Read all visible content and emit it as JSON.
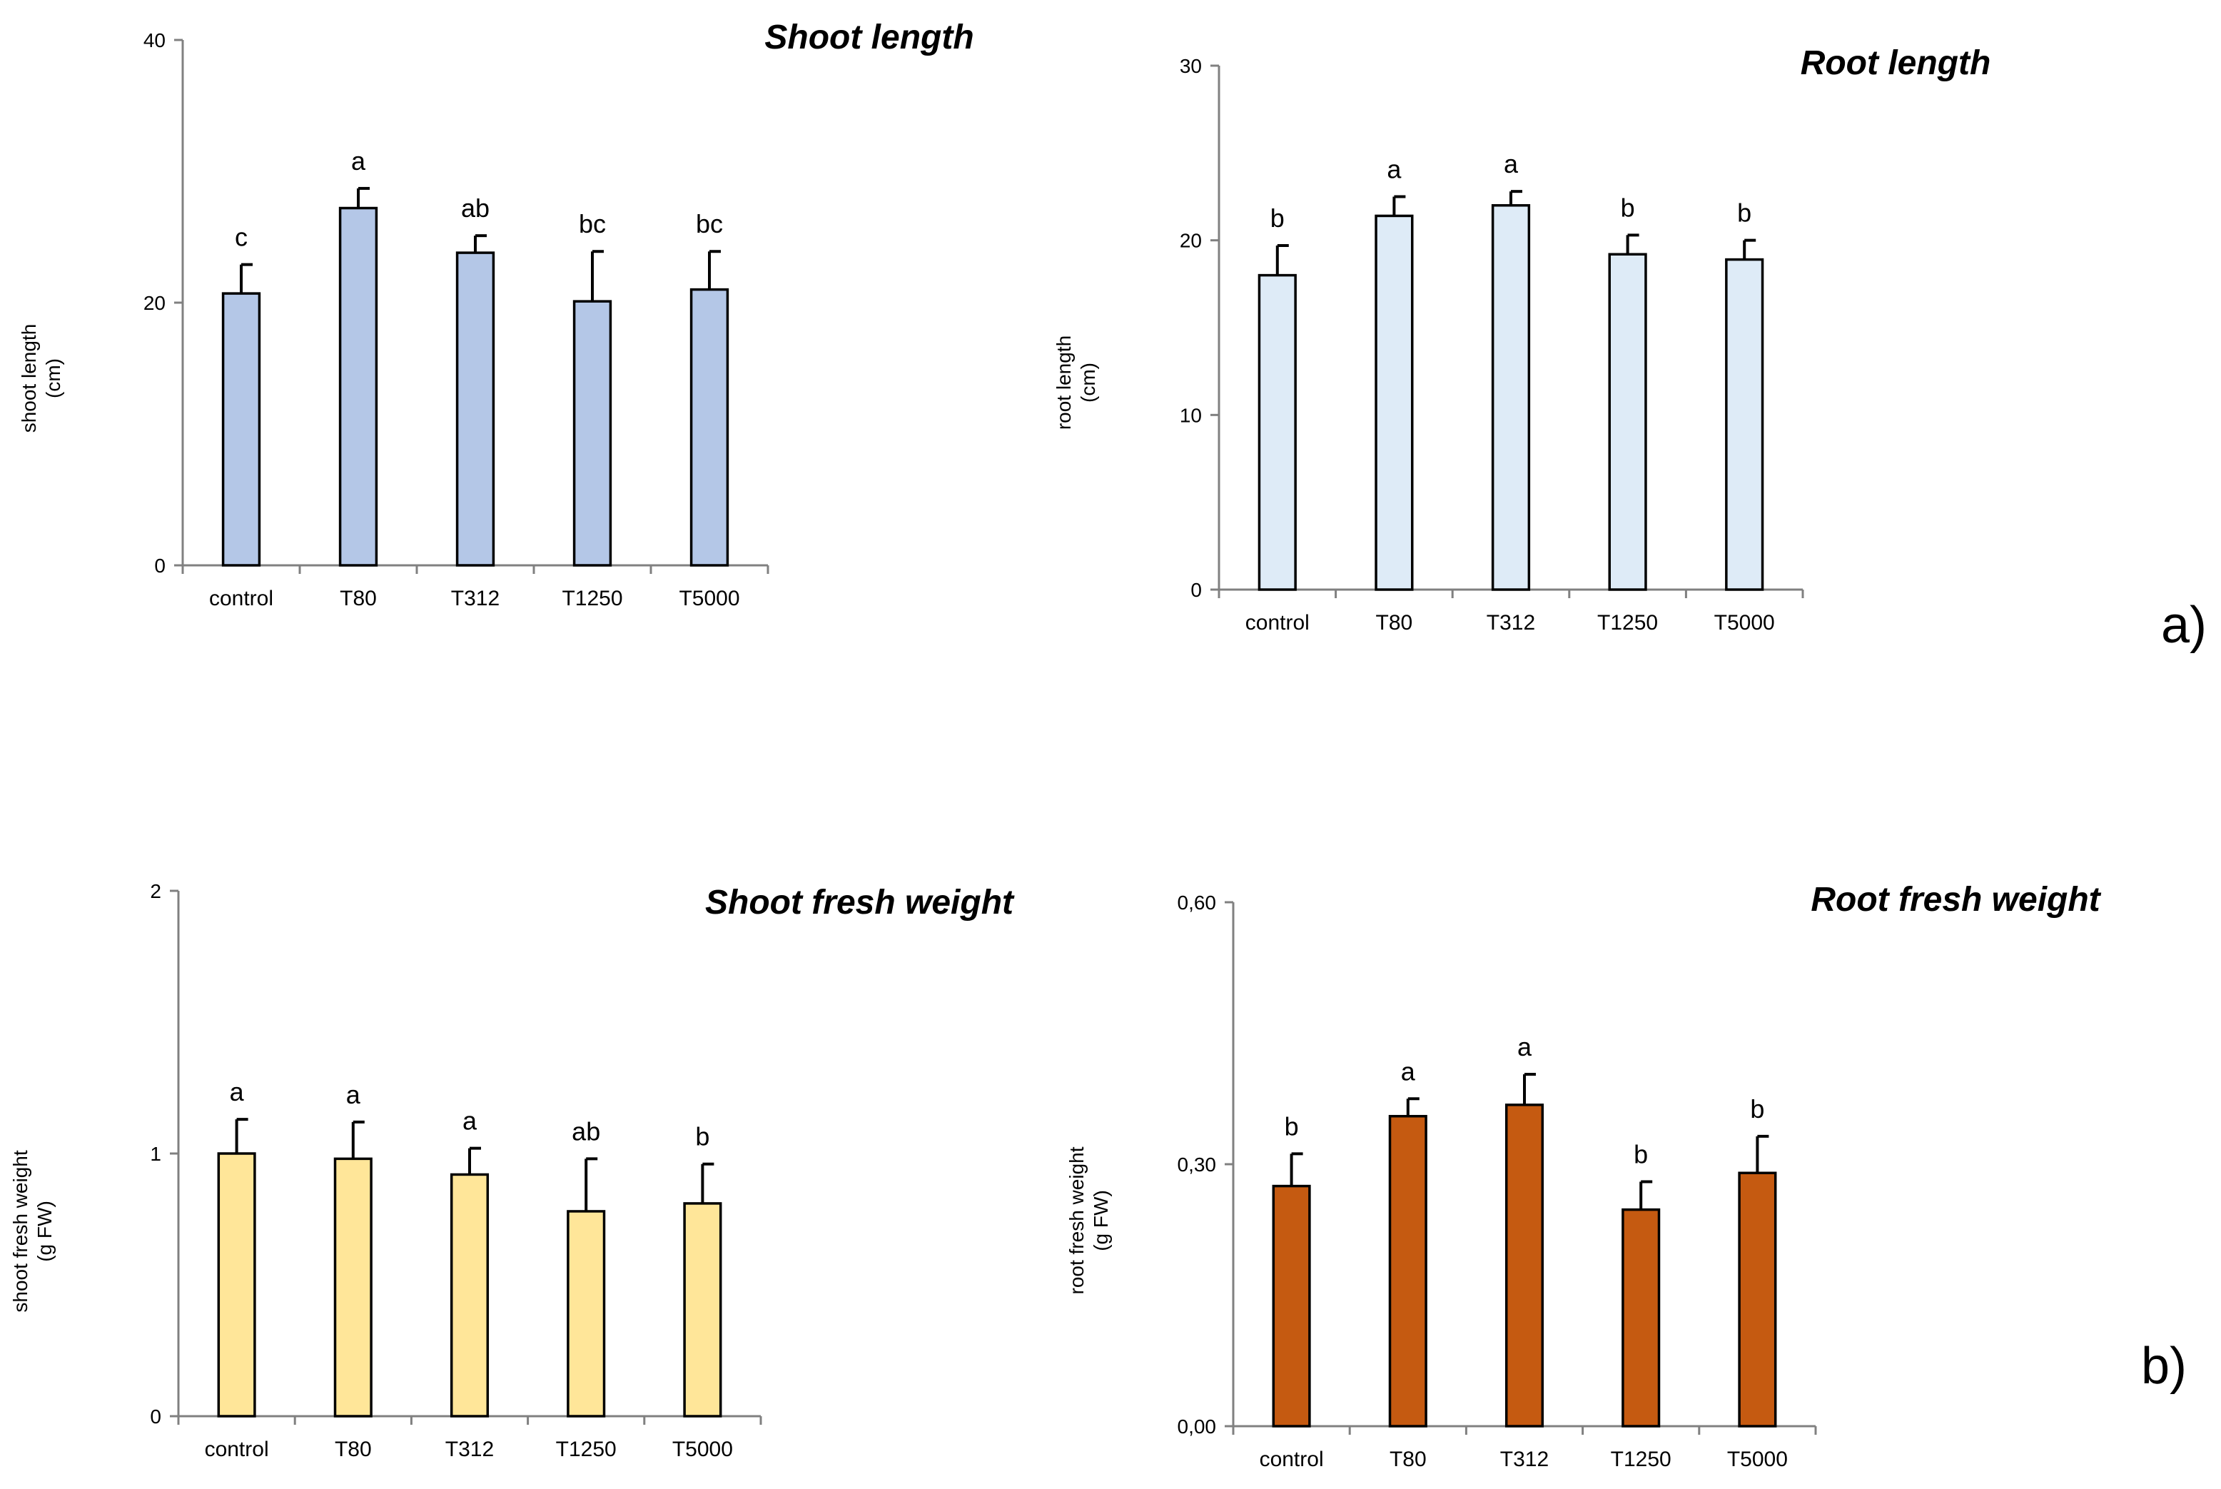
{
  "panel_labels": [
    "a)",
    "b)"
  ],
  "chart_data": [
    {
      "type": "bar",
      "title": "Shoot length",
      "ylabel": "shoot length (cm)",
      "xlabel": "",
      "categories": [
        "control",
        "T80",
        "T312",
        "T1250",
        "T5000"
      ],
      "values": [
        20.7,
        27.2,
        23.8,
        20.1,
        21.0
      ],
      "errors": [
        2.2,
        1.5,
        1.3,
        3.8,
        2.9
      ],
      "significance": [
        "c",
        "a",
        "ab",
        "bc",
        "bc"
      ],
      "ylim": [
        0,
        40
      ],
      "yticks": [
        "0",
        "20",
        "40"
      ],
      "ytick_values": [
        0,
        20,
        40
      ],
      "bar_color": "#b4c7e7",
      "grid": false,
      "legend": "none"
    },
    {
      "type": "bar",
      "title": "Root length",
      "ylabel": "root length (cm)",
      "xlabel": "",
      "categories": [
        "control",
        "T80",
        "T312",
        "T1250",
        "T5000"
      ],
      "values": [
        18.0,
        21.4,
        22.0,
        19.2,
        18.9
      ],
      "errors": [
        1.7,
        1.1,
        0.8,
        1.1,
        1.1
      ],
      "significance": [
        "b",
        "a",
        "a",
        "b",
        "b"
      ],
      "ylim": [
        0,
        30
      ],
      "yticks": [
        "0",
        "10",
        "20",
        "30"
      ],
      "ytick_values": [
        0,
        10,
        20,
        30
      ],
      "bar_color": "#deebf7",
      "grid": false,
      "legend": "none"
    },
    {
      "type": "bar",
      "title": "Shoot fresh weight",
      "ylabel": "shoot fresh weight (g FW)",
      "xlabel": "",
      "categories": [
        "control",
        "T80",
        "T312",
        "T1250",
        "T5000"
      ],
      "values": [
        1.0,
        0.98,
        0.92,
        0.78,
        0.81
      ],
      "errors": [
        0.13,
        0.14,
        0.1,
        0.2,
        0.15
      ],
      "significance": [
        "a",
        "a",
        "a",
        "ab",
        "b"
      ],
      "ylim": [
        0,
        2
      ],
      "yticks": [
        "0",
        "1",
        "2"
      ],
      "ytick_values": [
        0,
        1,
        2
      ],
      "bar_color": "#ffe699",
      "grid": false,
      "legend": "none"
    },
    {
      "type": "bar",
      "title": "Root fresh weight",
      "ylabel": "root fresh weight (g FW)",
      "xlabel": "",
      "categories": [
        "control",
        "T80",
        "T312",
        "T1250",
        "T5000"
      ],
      "values": [
        0.275,
        0.355,
        0.368,
        0.248,
        0.29
      ],
      "errors": [
        0.037,
        0.02,
        0.035,
        0.032,
        0.042
      ],
      "significance": [
        "b",
        "a",
        "a",
        "b",
        "b"
      ],
      "ylim": [
        0,
        0.6
      ],
      "yticks": [
        "0,00",
        "0,30",
        "0,60"
      ],
      "ytick_values": [
        0,
        0.3,
        0.6
      ],
      "bar_color": "#c55a11",
      "grid": false,
      "legend": "none"
    }
  ]
}
